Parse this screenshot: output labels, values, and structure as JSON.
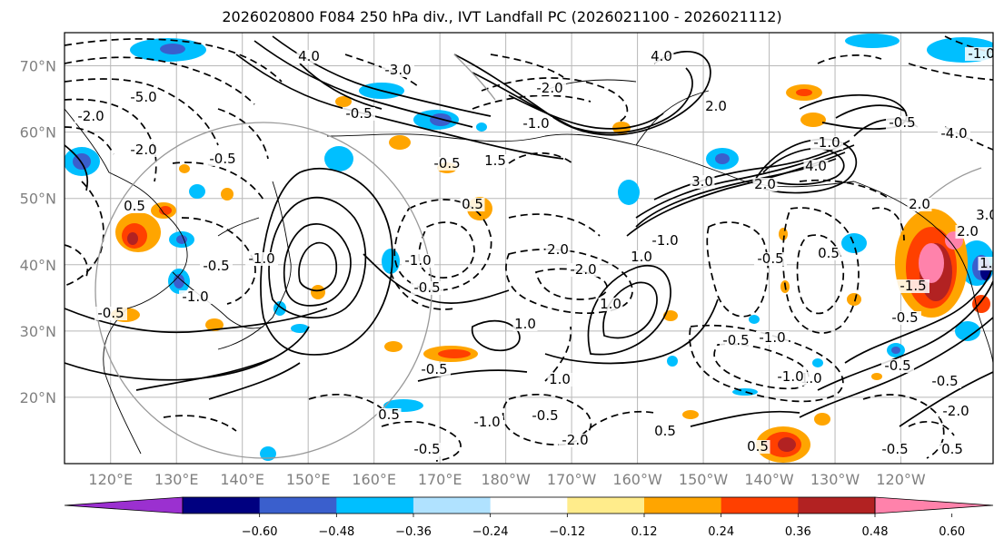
{
  "title": "2026020800 F084 250 hPa div., IVT Landfall PC (2026021100 - 2026021112)",
  "map": {
    "lat_labels": [
      "70°N",
      "60°N",
      "50°N",
      "40°N",
      "30°N",
      "20°N"
    ],
    "lon_labels": [
      "120°E",
      "130°E",
      "140°E",
      "150°E",
      "160°E",
      "170°E",
      "180°W",
      "170°W",
      "160°W",
      "150°W",
      "140°W",
      "130°W",
      "120°W"
    ],
    "lat_values": [
      70,
      60,
      50,
      40,
      30,
      20
    ],
    "lon_values": [
      120,
      130,
      140,
      150,
      160,
      170,
      180,
      190,
      200,
      210,
      220,
      230,
      240
    ],
    "extent": {
      "lon_min": 113,
      "lon_max": 254,
      "lat_min": 10,
      "lat_max": 75
    }
  },
  "colorbar": {
    "ticks": [
      "−0.60",
      "−0.48",
      "−0.36",
      "−0.24",
      "−0.12",
      "0.12",
      "0.24",
      "0.36",
      "0.48",
      "0.60"
    ],
    "colors": [
      "#9b30d0",
      "#000080",
      "#3a5fcd",
      "#00bfff",
      "#b0e2ff",
      "#ffffff",
      "#ffec8b",
      "#ffa500",
      "#ff4000",
      "#b22222",
      "#ff82ab"
    ],
    "extend": "both"
  },
  "contour_labels": [
    "4.0",
    "4.0",
    "-1.0",
    "-2.0",
    "-5.0",
    "-2.0",
    "-0.5",
    "-2.0",
    "-1.0",
    "-0.5",
    "-3.0",
    "-1.0",
    "-0.5",
    "-0.5",
    "-1.0",
    "0.5",
    "-0.5",
    "0.5",
    "-1.0",
    "-0.5",
    "1.5",
    "-0.5",
    "0.5",
    "2.0",
    "3.0",
    "2.0",
    "-1.0",
    "1.0",
    "1.0",
    "-0.5",
    "-0.5",
    "-2.0",
    "2.0",
    "1.0",
    "1.0",
    "-0.5",
    "-2.0",
    "0.5",
    "-1.0",
    "-0.5",
    "0.5",
    "-1.0",
    "-0.5",
    "-0.5",
    "-1.0",
    "-0.5",
    "0.5",
    "2.0",
    "-0.5",
    "-1.0",
    "0.5",
    "-4.0",
    "-1.0",
    "-2.0",
    "-0.5",
    "-1.5",
    "1.0",
    "2.0",
    "4.0",
    "3.0"
  ]
}
